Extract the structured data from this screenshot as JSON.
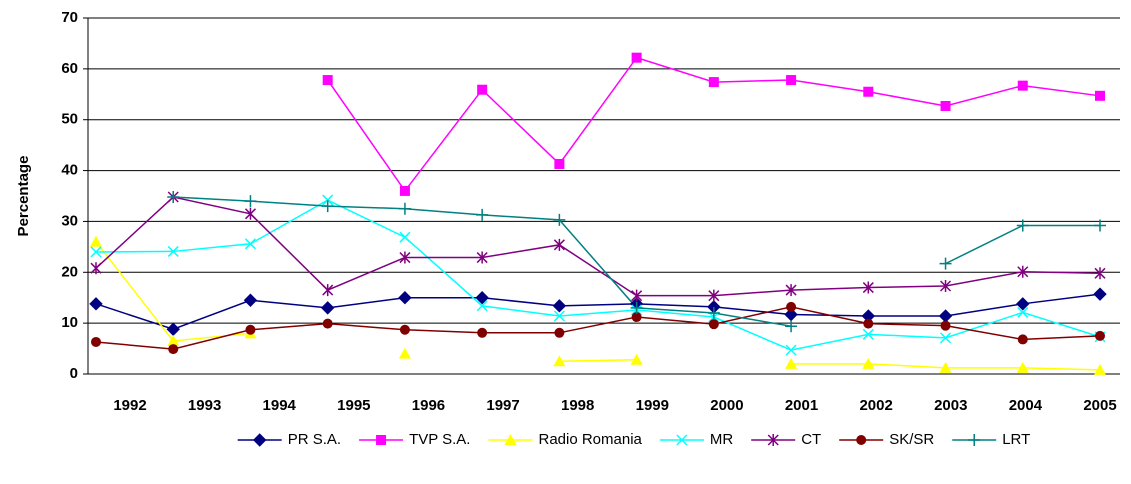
{
  "chart_data": {
    "type": "line",
    "ylabel": "Percentage",
    "categories": [
      "1992",
      "1993",
      "1994",
      "1995",
      "1996",
      "1997",
      "1998",
      "1999",
      "2000",
      "2001",
      "2002",
      "2003",
      "2004",
      "2005"
    ],
    "series": [
      {
        "name": "PR S.A.",
        "color": "#000080",
        "marker": "diamond",
        "values": [
          13.8,
          8.8,
          14.5,
          13,
          15,
          15,
          13.4,
          13.8,
          13.2,
          11.7,
          11.4,
          11.4,
          13.8,
          15.7
        ]
      },
      {
        "name": "TVP S.A.",
        "color": "#ff00ff",
        "marker": "square",
        "values": [
          null,
          null,
          null,
          57.8,
          36,
          55.9,
          41.3,
          62.2,
          57.4,
          57.8,
          55.5,
          52.7,
          56.7,
          54.7
        ]
      },
      {
        "name": "Radio Romania",
        "color": "#ffff00",
        "marker": "triangle",
        "values": [
          26,
          6.5,
          8,
          null,
          4,
          null,
          2.5,
          2.8,
          null,
          2,
          2,
          1.2,
          1.2,
          0.8
        ]
      },
      {
        "name": "MR",
        "color": "#00ffff",
        "marker": "x",
        "values": [
          24,
          24.1,
          25.6,
          34.2,
          26.9,
          13.4,
          11.4,
          12.6,
          11.2,
          4.7,
          7.8,
          7.1,
          12.1,
          7.3
        ]
      },
      {
        "name": "CT",
        "color": "#800080",
        "marker": "star",
        "values": [
          20.8,
          34.8,
          31.5,
          16.5,
          22.9,
          22.9,
          25.4,
          15.4,
          15.4,
          16.5,
          17,
          17.3,
          20.1,
          19.8
        ]
      },
      {
        "name": "SK/SR",
        "color": "#800000",
        "marker": "circle",
        "values": [
          6.3,
          4.9,
          8.7,
          9.9,
          8.7,
          8.1,
          8.1,
          11.2,
          9.8,
          13.2,
          9.9,
          9.5,
          6.8,
          7.5
        ]
      },
      {
        "name": "LRT",
        "color": "#008080",
        "marker": "plus",
        "values": [
          null,
          34.8,
          34,
          33,
          32.5,
          31.3,
          30.3,
          13,
          12,
          9.4,
          null,
          21.7,
          29.2,
          29.2
        ]
      }
    ],
    "ylim": [
      0,
      70
    ],
    "yticks": [
      0,
      10,
      20,
      30,
      40,
      50,
      60,
      70
    ],
    "grid": true,
    "legend": "bottom"
  }
}
